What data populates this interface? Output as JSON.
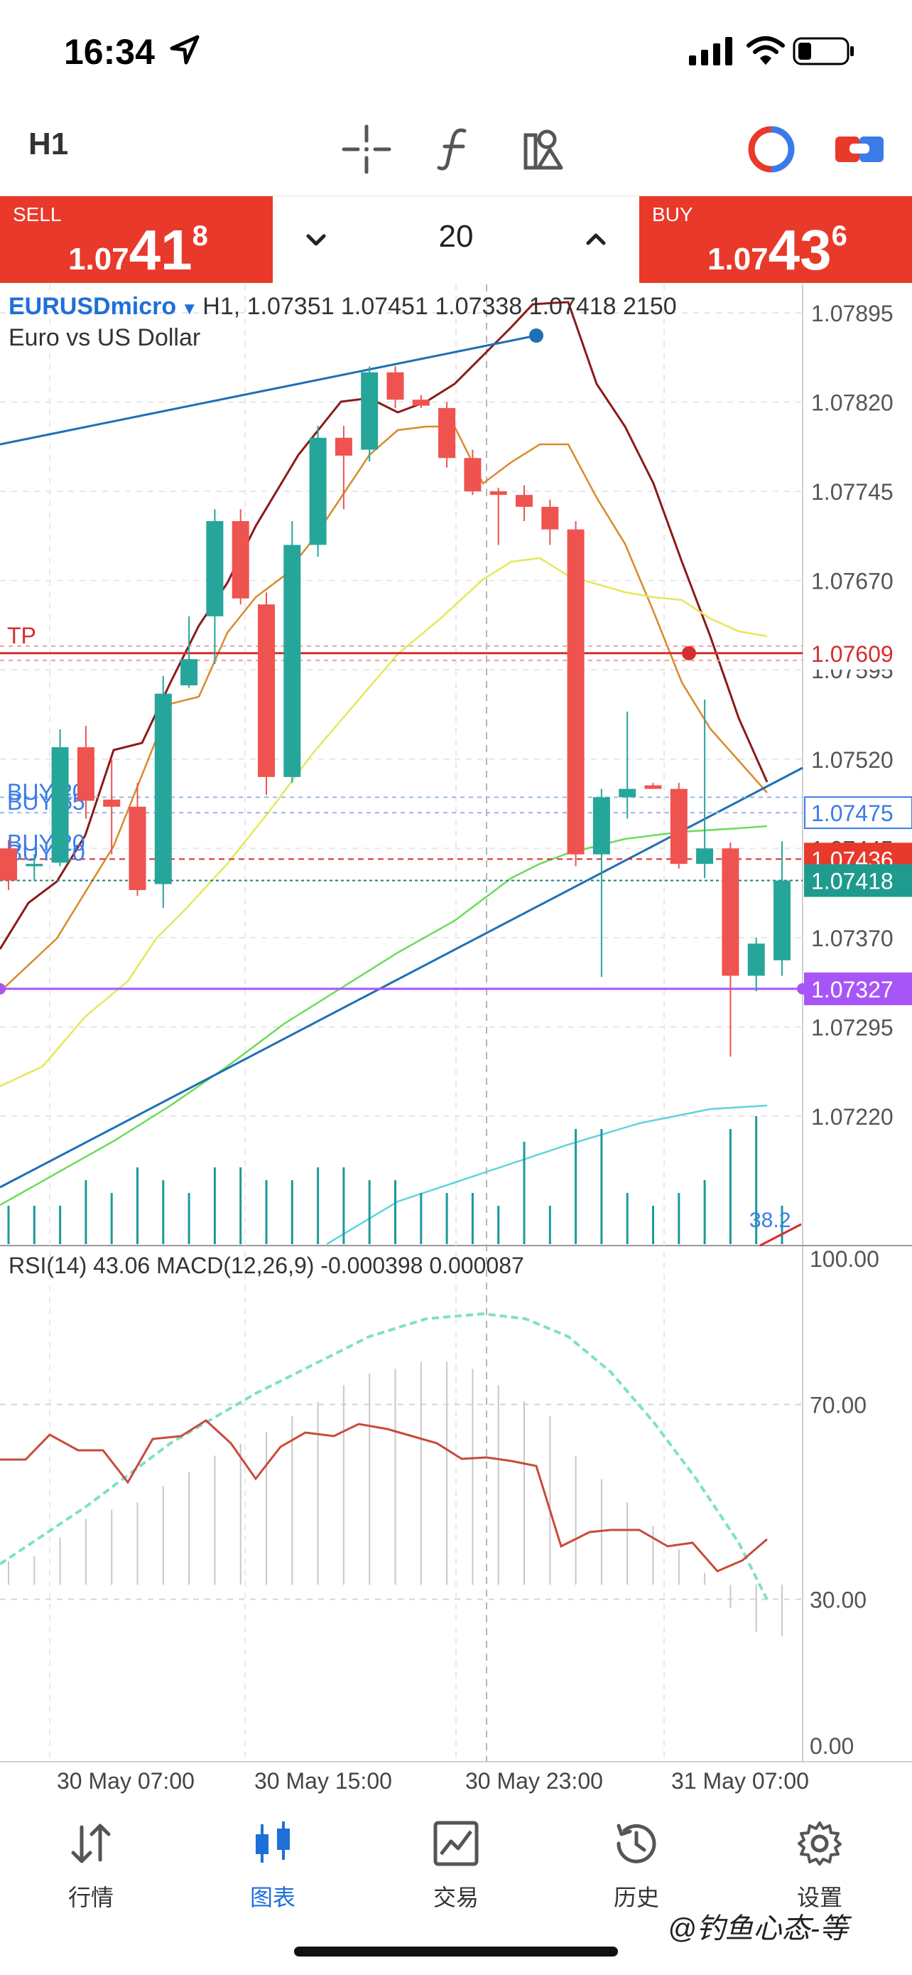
{
  "status_bar": {
    "time": "16:34"
  },
  "toolbar": {
    "timeframe": "H1",
    "icons": [
      "crosshair-icon",
      "function-icon",
      "objects-icon",
      "trade-mode-icon",
      "one-click-trade-icon"
    ]
  },
  "trade": {
    "sell_label": "SELL",
    "sell_price_prefix": "1.07",
    "sell_price_big": "41",
    "sell_price_sup": "8",
    "buy_label": "BUY",
    "buy_price_prefix": "1.07",
    "buy_price_big": "43",
    "buy_price_sup": "6",
    "lot": "20"
  },
  "chart": {
    "symbol": "EURUSDmicro",
    "ohlc_line": "H1, 1.07351 1.07451 1.07338 1.07418 2150",
    "description": "Euro vs US Dollar",
    "price_ticks": [
      "1.07895",
      "1.07820",
      "1.07745",
      "1.07670",
      "1.07595",
      "1.07520",
      "1.07445",
      "1.07370",
      "1.07295",
      "1.07220"
    ],
    "price_labels": {
      "tp_level": "1.07609",
      "buy_level": "1.07475",
      "sell_level": "1.07436",
      "current": "1.07418",
      "support": "1.07327"
    },
    "order_labels": {
      "tp": "TP",
      "buy_a": "BUY 20",
      "buy_b": "BUY 55",
      "buy_c": "BUY 20",
      "buy_d": "BUY 10"
    },
    "volume_label": "38.2",
    "indicator_legend": "RSI(14) 43.06 MACD(12,26,9) -0.000398 0.000087",
    "indicator_ticks": [
      "100.00",
      "70.00",
      "30.00",
      "0.00"
    ],
    "time_ticks": [
      "30 May 07:00",
      "30 May 15:00",
      "30 May 23:00",
      "31 May 07:00"
    ],
    "colors": {
      "bull": "#26a69a",
      "bear": "#ef5350",
      "sell_red": "#e8392b",
      "accent_blue": "#1f6fd8",
      "support_purple": "#a855f7"
    }
  },
  "chart_data": {
    "type": "candlestick",
    "candles": [
      {
        "o": 1.07445,
        "h": 1.07452,
        "l": 1.0741,
        "c": 1.07418
      },
      {
        "o": 1.0743,
        "h": 1.0744,
        "l": 1.07418,
        "c": 1.07432
      },
      {
        "o": 1.07433,
        "h": 1.07545,
        "l": 1.0743,
        "c": 1.0753
      },
      {
        "o": 1.0753,
        "h": 1.07548,
        "l": 1.0747,
        "c": 1.07485
      },
      {
        "o": 1.07486,
        "h": 1.0752,
        "l": 1.0744,
        "c": 1.0748
      },
      {
        "o": 1.0748,
        "h": 1.075,
        "l": 1.07405,
        "c": 1.0741
      },
      {
        "o": 1.07415,
        "h": 1.0759,
        "l": 1.07395,
        "c": 1.07575
      },
      {
        "o": 1.07582,
        "h": 1.0764,
        "l": 1.0758,
        "c": 1.07604
      },
      {
        "o": 1.0764,
        "h": 1.0773,
        "l": 1.076,
        "c": 1.0772
      },
      {
        "o": 1.0772,
        "h": 1.0773,
        "l": 1.0765,
        "c": 1.07655
      },
      {
        "o": 1.0765,
        "h": 1.0766,
        "l": 1.0749,
        "c": 1.07505
      },
      {
        "o": 1.07505,
        "h": 1.0772,
        "l": 1.075,
        "c": 1.077
      },
      {
        "o": 1.077,
        "h": 1.078,
        "l": 1.0769,
        "c": 1.0779
      },
      {
        "o": 1.0779,
        "h": 1.078,
        "l": 1.0773,
        "c": 1.07775
      },
      {
        "o": 1.0778,
        "h": 1.0785,
        "l": 1.0777,
        "c": 1.07845
      },
      {
        "o": 1.07845,
        "h": 1.0785,
        "l": 1.07815,
        "c": 1.07822
      },
      {
        "o": 1.07822,
        "h": 1.07826,
        "l": 1.07815,
        "c": 1.07817
      },
      {
        "o": 1.07815,
        "h": 1.0782,
        "l": 1.07765,
        "c": 1.07773
      },
      {
        "o": 1.07773,
        "h": 1.0778,
        "l": 1.07742,
        "c": 1.07745
      },
      {
        "o": 1.07745,
        "h": 1.07748,
        "l": 1.077,
        "c": 1.07742
      },
      {
        "o": 1.07742,
        "h": 1.0775,
        "l": 1.0772,
        "c": 1.07732
      },
      {
        "o": 1.07732,
        "h": 1.07738,
        "l": 1.077,
        "c": 1.07713
      },
      {
        "o": 1.07713,
        "h": 1.0772,
        "l": 1.0743,
        "c": 1.0744
      },
      {
        "o": 1.0744,
        "h": 1.07495,
        "l": 1.07337,
        "c": 1.07488
      },
      {
        "o": 1.07488,
        "h": 1.0756,
        "l": 1.0747,
        "c": 1.07495
      },
      {
        "o": 1.07498,
        "h": 1.075,
        "l": 1.07495,
        "c": 1.07495
      },
      {
        "o": 1.07495,
        "h": 1.075,
        "l": 1.07428,
        "c": 1.07432
      },
      {
        "o": 1.07432,
        "h": 1.0757,
        "l": 1.0742,
        "c": 1.07445
      },
      {
        "o": 1.07445,
        "h": 1.0745,
        "l": 1.0727,
        "c": 1.07338
      },
      {
        "o": 1.07338,
        "h": 1.0737,
        "l": 1.07325,
        "c": 1.07365
      },
      {
        "o": 1.07351,
        "h": 1.07451,
        "l": 1.07338,
        "c": 1.07418
      }
    ],
    "y_range": [
      1.07175,
      1.07935
    ],
    "indicator_range": [
      0,
      100
    ]
  }
}
